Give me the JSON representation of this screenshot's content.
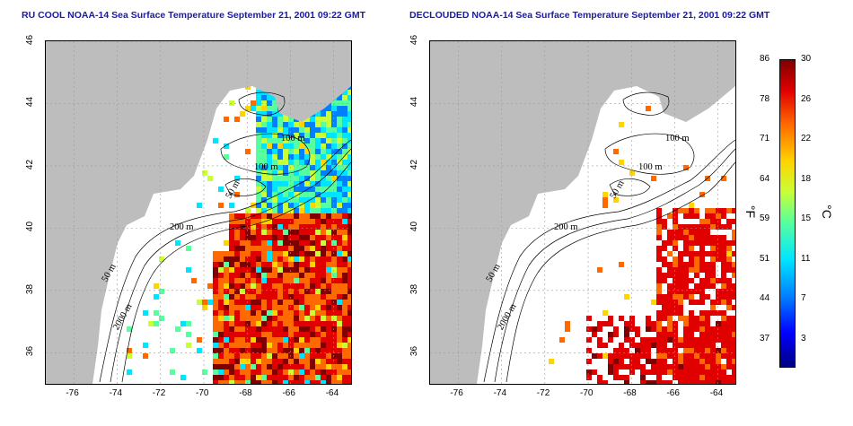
{
  "panels": [
    {
      "title": "RU COOL NOAA-14 Sea Surface Temperature September 21, 2001 09:22 GMT"
    },
    {
      "title": "DECLOUDED NOAA-14 Sea Surface Temperature September 21, 2001 09:22 GMT"
    }
  ],
  "axes": {
    "x_ticks": [
      "-76",
      "-74",
      "-72",
      "-70",
      "-68",
      "-66",
      "-64"
    ],
    "y_ticks": [
      "46",
      "44",
      "42",
      "40",
      "38",
      "36"
    ],
    "lon_range": [
      -77.3,
      -63.2
    ],
    "lat_range": [
      35,
      46
    ]
  },
  "contour_labels": {
    "left": [
      "100 m",
      "100 m",
      "50 m",
      "200 m",
      "50 m",
      "2000 m"
    ],
    "right": [
      "100 m",
      "100 m",
      "50 m",
      "200 m",
      "50 m",
      "2000 m"
    ]
  },
  "colorbar": {
    "fahrenheit_labels": [
      "86",
      "78",
      "71",
      "64",
      "59",
      "51",
      "44",
      "37"
    ],
    "celsius_labels": [
      "30",
      "26",
      "22",
      "18",
      "15",
      "11",
      "7",
      "3"
    ],
    "fahrenheit_unit": "°F",
    "celsius_unit": "°C",
    "colors": [
      "#00007f",
      "#0000ff",
      "#0080ff",
      "#00e5ff",
      "#57ff9f",
      "#c8ff37",
      "#ffd400",
      "#ff6a00",
      "#e00000",
      "#7f0000"
    ]
  },
  "colors": {
    "land": "#bdbdbd",
    "title": "#1a1aa8",
    "grid": "#9a9a9a"
  }
}
